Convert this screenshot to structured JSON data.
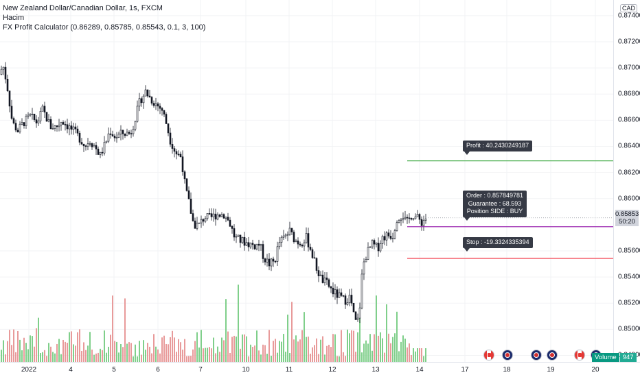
{
  "legend": {
    "symbol_line": "New Zealand Dollar/Canadian Dollar, 1s, FXCM",
    "volume_line": "Hacim",
    "indicator_line": "FX Profit Calculator (0.86289, 0.85785, 0.85543, 0.1, 3, 100)"
  },
  "price_axis": {
    "currency": "CAD",
    "labels": [
      "0.87400",
      "0.87200",
      "0.87000",
      "0.86800",
      "0.86600",
      "0.86400",
      "0.86200",
      "0.86000",
      "0.85600",
      "0.85400",
      "0.85200",
      "0.85000",
      "0.84800"
    ],
    "current_price": "0.85853",
    "countdown": "50:20"
  },
  "time_axis": {
    "labels": [
      "2022",
      "4",
      "5",
      "6",
      "7",
      "10",
      "11",
      "12",
      "13",
      "14",
      "17",
      "18",
      "19",
      "20"
    ]
  },
  "annotations": {
    "profit": "Profit : 40.2430249187",
    "order_lines": [
      "Order : 0.857849781",
      "Guarantee : 68.593",
      "Position SIDE : BUY"
    ],
    "stop": "Stop : -19.3324335394"
  },
  "volume_badge": {
    "label": "Volume",
    "value": "947"
  },
  "events": [
    "flag-ca",
    "flag-nz",
    "flag-nz",
    "flag-nz",
    "flag-ca",
    "flag-nz"
  ],
  "colors": {
    "up": "#26a69a",
    "down": "#ef5350",
    "candle": "#131722",
    "profit_line": "#4caf50",
    "order_line": "#9c27b0",
    "stop_line": "#f23645"
  },
  "chart_data": {
    "type": "candlestick",
    "title": "New Zealand Dollar/Canadian Dollar, 1s, FXCM",
    "x_axis_labels": [
      "2022",
      "4",
      "5",
      "6",
      "7",
      "10",
      "11",
      "12",
      "13",
      "14",
      "17",
      "18",
      "19",
      "20"
    ],
    "ylim": [
      0.8475,
      0.8752
    ],
    "close_path": [
      {
        "x": 0,
        "y": 0.8695
      },
      {
        "x": 4,
        "y": 0.8703
      },
      {
        "x": 10,
        "y": 0.8688
      },
      {
        "x": 18,
        "y": 0.8658
      },
      {
        "x": 26,
        "y": 0.8652
      },
      {
        "x": 34,
        "y": 0.8658
      },
      {
        "x": 44,
        "y": 0.8663
      },
      {
        "x": 54,
        "y": 0.8658
      },
      {
        "x": 62,
        "y": 0.8668
      },
      {
        "x": 74,
        "y": 0.8655
      },
      {
        "x": 82,
        "y": 0.8655
      },
      {
        "x": 90,
        "y": 0.866
      },
      {
        "x": 100,
        "y": 0.8655
      },
      {
        "x": 110,
        "y": 0.865
      },
      {
        "x": 118,
        "y": 0.8645
      },
      {
        "x": 124,
        "y": 0.864
      },
      {
        "x": 130,
        "y": 0.8645
      },
      {
        "x": 138,
        "y": 0.864
      },
      {
        "x": 146,
        "y": 0.8633
      },
      {
        "x": 154,
        "y": 0.8643
      },
      {
        "x": 160,
        "y": 0.8652
      },
      {
        "x": 168,
        "y": 0.8647
      },
      {
        "x": 178,
        "y": 0.865
      },
      {
        "x": 190,
        "y": 0.865
      },
      {
        "x": 196,
        "y": 0.866
      },
      {
        "x": 204,
        "y": 0.8675
      },
      {
        "x": 212,
        "y": 0.8682
      },
      {
        "x": 220,
        "y": 0.8676
      },
      {
        "x": 228,
        "y": 0.8672
      },
      {
        "x": 236,
        "y": 0.8668
      },
      {
        "x": 242,
        "y": 0.8658
      },
      {
        "x": 248,
        "y": 0.8645
      },
      {
        "x": 256,
        "y": 0.8635
      },
      {
        "x": 264,
        "y": 0.8632
      },
      {
        "x": 270,
        "y": 0.8608
      },
      {
        "x": 276,
        "y": 0.8595
      },
      {
        "x": 282,
        "y": 0.858
      },
      {
        "x": 290,
        "y": 0.858
      },
      {
        "x": 298,
        "y": 0.8586
      },
      {
        "x": 306,
        "y": 0.8585
      },
      {
        "x": 316,
        "y": 0.8588
      },
      {
        "x": 326,
        "y": 0.8588
      },
      {
        "x": 334,
        "y": 0.8582
      },
      {
        "x": 342,
        "y": 0.857
      },
      {
        "x": 350,
        "y": 0.8568
      },
      {
        "x": 360,
        "y": 0.8566
      },
      {
        "x": 370,
        "y": 0.8564
      },
      {
        "x": 378,
        "y": 0.8565
      },
      {
        "x": 384,
        "y": 0.8555
      },
      {
        "x": 392,
        "y": 0.855
      },
      {
        "x": 400,
        "y": 0.8552
      },
      {
        "x": 406,
        "y": 0.8566
      },
      {
        "x": 414,
        "y": 0.857
      },
      {
        "x": 422,
        "y": 0.8575
      },
      {
        "x": 430,
        "y": 0.8568
      },
      {
        "x": 438,
        "y": 0.8566
      },
      {
        "x": 446,
        "y": 0.857
      },
      {
        "x": 452,
        "y": 0.8562
      },
      {
        "x": 460,
        "y": 0.8548
      },
      {
        "x": 468,
        "y": 0.8538
      },
      {
        "x": 476,
        "y": 0.8535
      },
      {
        "x": 486,
        "y": 0.8528
      },
      {
        "x": 494,
        "y": 0.8525
      },
      {
        "x": 502,
        "y": 0.8522
      },
      {
        "x": 510,
        "y": 0.8525
      },
      {
        "x": 516,
        "y": 0.8508
      },
      {
        "x": 520,
        "y": 0.8503
      },
      {
        "x": 524,
        "y": 0.8518
      },
      {
        "x": 528,
        "y": 0.8548
      },
      {
        "x": 534,
        "y": 0.8558
      },
      {
        "x": 542,
        "y": 0.8565
      },
      {
        "x": 550,
        "y": 0.8562
      },
      {
        "x": 556,
        "y": 0.857
      },
      {
        "x": 564,
        "y": 0.8572
      },
      {
        "x": 572,
        "y": 0.8572
      },
      {
        "x": 578,
        "y": 0.8585
      },
      {
        "x": 586,
        "y": 0.8588
      },
      {
        "x": 592,
        "y": 0.8581
      },
      {
        "x": 600,
        "y": 0.8588
      },
      {
        "x": 608,
        "y": 0.8585
      },
      {
        "x": 614,
        "y": 0.8582
      },
      {
        "x": 620,
        "y": 0.8585
      }
    ],
    "price_lines": [
      {
        "name": "Profit",
        "value": 0.86289
      },
      {
        "name": "Order",
        "value": 0.85785
      },
      {
        "name": "Stop",
        "value": 0.85543
      }
    ],
    "last_price": 0.85853,
    "volume_label": "Volume",
    "last_volume": 947
  }
}
